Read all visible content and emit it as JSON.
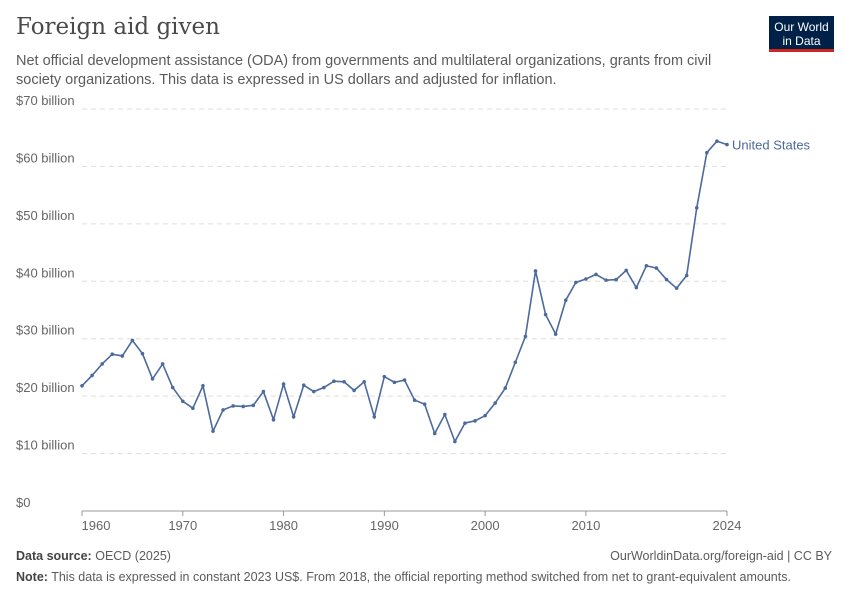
{
  "header": {
    "title": "Foreign aid given",
    "subtitle": "Net official development assistance (ODA) from governments and multilateral organizations, grants from civil society organizations. This data is expressed in US dollars and adjusted for inflation.",
    "logo": "Our World in Data"
  },
  "chart_data": {
    "type": "line",
    "ylim": [
      0,
      70
    ],
    "xlim": [
      1960,
      2024
    ],
    "grid": "horizontal dashed",
    "y_ticks": [
      {
        "v": 0,
        "label": "$0"
      },
      {
        "v": 10,
        "label": "$10 billion"
      },
      {
        "v": 20,
        "label": "$20 billion"
      },
      {
        "v": 30,
        "label": "$30 billion"
      },
      {
        "v": 40,
        "label": "$40 billion"
      },
      {
        "v": 50,
        "label": "$50 billion"
      },
      {
        "v": 60,
        "label": "$60 billion"
      },
      {
        "v": 70,
        "label": "$70 billion"
      }
    ],
    "x_ticks": [
      {
        "v": 1960,
        "label": "1960"
      },
      {
        "v": 1970,
        "label": "1970"
      },
      {
        "v": 1980,
        "label": "1980"
      },
      {
        "v": 1990,
        "label": "1990"
      },
      {
        "v": 2000,
        "label": "2000"
      },
      {
        "v": 2010,
        "label": "2010"
      },
      {
        "v": 2024,
        "label": "2024"
      }
    ],
    "series": [
      {
        "name": "United States",
        "color": "#4c6a9c",
        "start_year": 1960,
        "values": [
          21.8,
          23.6,
          25.6,
          27.3,
          27.0,
          29.7,
          27.4,
          23.0,
          25.6,
          21.5,
          19.1,
          17.9,
          21.8,
          13.9,
          17.6,
          18.3,
          18.2,
          18.4,
          20.8,
          15.9,
          22.1,
          16.4,
          21.9,
          20.8,
          21.5,
          22.6,
          22.5,
          21.0,
          22.5,
          16.4,
          23.4,
          22.4,
          22.8,
          19.3,
          18.6,
          13.5,
          16.8,
          12.1,
          15.3,
          15.7,
          16.6,
          18.8,
          21.4,
          25.9,
          30.4,
          41.8,
          34.2,
          30.8,
          36.7,
          39.8,
          40.4,
          41.2,
          40.2,
          40.3,
          41.9,
          38.9,
          42.7,
          42.3,
          40.3,
          38.8,
          41.0,
          52.8,
          62.4,
          64.4,
          63.8
        ]
      }
    ]
  },
  "footer": {
    "source_label": "Data source:",
    "source": "OECD (2025)",
    "url": "OurWorldinData.org/foreign-aid | CC BY",
    "note_label": "Note:",
    "note": "This data is expressed in constant 2023 US$. From 2018, the official reporting method switched from net to grant-equivalent amounts."
  }
}
